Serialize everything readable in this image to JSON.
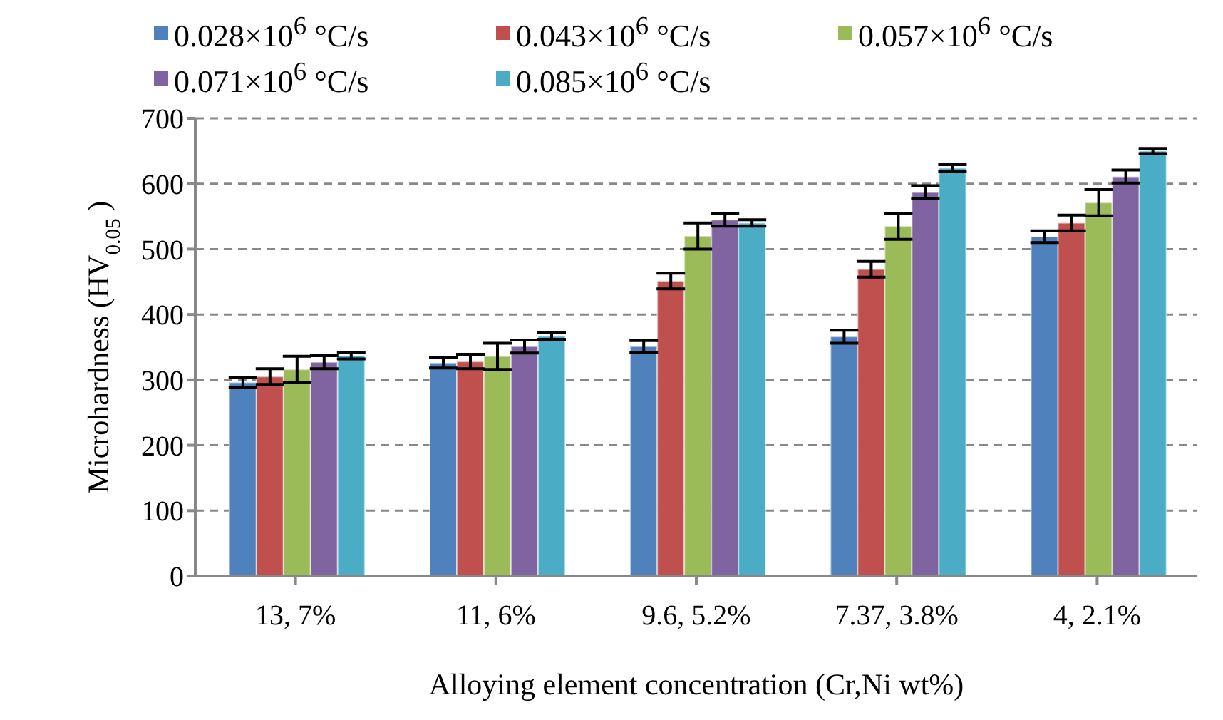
{
  "chart_data": {
    "type": "bar",
    "xlabel": "Alloying element concentration (Cr,Ni wt%)",
    "ylabel": "Microhardness (HV$_{0.05}$)",
    "categories": [
      "13, 7%",
      "11, 6%",
      "9.6, 5.2%",
      "7.37, 3.8%",
      "4, 2.1%"
    ],
    "series": [
      {
        "name": "0.028×10$^{6}$ °C/s",
        "color": "#4f81bd",
        "values": [
          296,
          326,
          351,
          366,
          519
        ],
        "errors": [
          8,
          8,
          9,
          10,
          9
        ]
      },
      {
        "name": "0.043×10$^{6}$ °C/s",
        "color": "#c0504d",
        "values": [
          305,
          328,
          451,
          469,
          540
        ],
        "errors": [
          12,
          11,
          12,
          12,
          12
        ]
      },
      {
        "name": "0.057×10$^{6}$ °C/s",
        "color": "#9bbb59",
        "values": [
          316,
          336,
          520,
          535,
          571
        ],
        "errors": [
          20,
          20,
          20,
          20,
          20
        ]
      },
      {
        "name": "0.071×10$^{6}$ °C/s",
        "color": "#8064a2",
        "values": [
          327,
          351,
          545,
          587,
          611
        ],
        "errors": [
          10,
          10,
          10,
          10,
          10
        ]
      },
      {
        "name": "0.085×10$^{6}$ °C/s",
        "color": "#4bacc6",
        "values": [
          337,
          367,
          540,
          624,
          650
        ],
        "errors": [
          5,
          5,
          5,
          5,
          4
        ]
      }
    ],
    "ylim": [
      0,
      700
    ],
    "yticks": [
      0,
      100,
      200,
      300,
      400,
      500,
      600,
      700
    ],
    "grid": "y",
    "legend": "top"
  }
}
